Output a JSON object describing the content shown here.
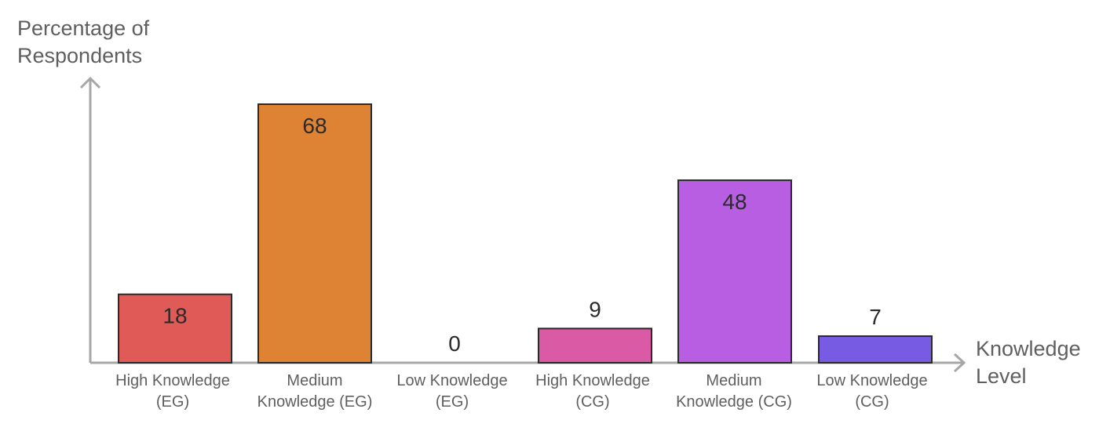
{
  "chart_data": {
    "type": "bar",
    "ylabel": "Percentage of\nRespondents",
    "xlabel": "Knowledge\nLevel",
    "categories": [
      "High Knowledge\n(EG)",
      "Medium\nKnowledge (EG)",
      "Low Knowledge\n(EG)",
      "High Knowledge\n(CG)",
      "Medium\nKnowledge (CG)",
      "Low Knowledge\n(CG)"
    ],
    "values": [
      18,
      68,
      0,
      9,
      48,
      7
    ],
    "data_labels": [
      "18",
      "68",
      "0",
      "9",
      "48",
      "7"
    ],
    "colors": [
      "#e05a57",
      "#dd8333",
      "#e0e0e0",
      "#da5aa6",
      "#b85ee2",
      "#775be2"
    ],
    "ylim": [
      0,
      68
    ],
    "grid": false,
    "legend": "none"
  }
}
